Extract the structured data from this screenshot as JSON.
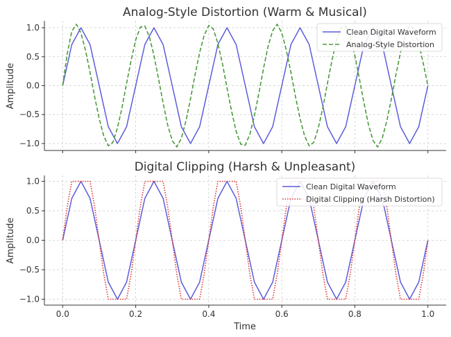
{
  "chart_data": [
    {
      "type": "line",
      "title": "Analog-Style Distortion (Warm & Musical)",
      "xlabel": "",
      "ylabel": "Amplitude",
      "xlim": [
        -0.05,
        1.05
      ],
      "ylim": [
        -1.12,
        1.12
      ],
      "xticks": [
        0.0,
        0.2,
        0.4,
        0.6,
        0.8,
        1.0
      ],
      "xtick_labels": [
        "",
        "",
        "",
        "",
        "",
        ""
      ],
      "yticks": [
        -1.0,
        -0.5,
        0.0,
        0.5,
        1.0
      ],
      "ytick_labels": [
        "−1.0",
        "−0.5",
        "0.0",
        "0.5",
        "1.0"
      ],
      "grid": true,
      "legend": "top-right",
      "series": [
        {
          "name": "Clean Digital Waveform",
          "color": "#5b5bdb",
          "style": "solid",
          "x": [
            0.0,
            0.025,
            0.05,
            0.075,
            0.1,
            0.125,
            0.15,
            0.175,
            0.2,
            0.225,
            0.25,
            0.275,
            0.3,
            0.325,
            0.35,
            0.375,
            0.4,
            0.425,
            0.45,
            0.475,
            0.5,
            0.525,
            0.55,
            0.575,
            0.6,
            0.625,
            0.65,
            0.675,
            0.7,
            0.725,
            0.75,
            0.775,
            0.8,
            0.825,
            0.85,
            0.875,
            0.9,
            0.925,
            0.95,
            0.975,
            1.0
          ],
          "y": [
            0.0,
            0.71,
            1.0,
            0.71,
            0.0,
            -0.71,
            -1.0,
            -0.71,
            0.0,
            0.71,
            1.0,
            0.71,
            0.0,
            -0.71,
            -1.0,
            -0.71,
            0.0,
            0.71,
            1.0,
            0.71,
            0.0,
            -0.71,
            -1.0,
            -0.71,
            0.0,
            0.71,
            1.0,
            0.71,
            0.0,
            -0.71,
            -1.0,
            -0.71,
            0.0,
            0.71,
            1.0,
            0.71,
            0.0,
            -0.71,
            -1.0,
            -0.71,
            0.0
          ]
        },
        {
          "name": "Analog-Style Distortion",
          "color": "#4a9a3a",
          "style": "dashed",
          "x": [
            0.0,
            0.0125,
            0.025,
            0.0375,
            0.05,
            0.0625,
            0.075,
            0.0875,
            0.1,
            0.1125,
            0.125,
            0.1375,
            0.15,
            0.1625,
            0.175,
            0.1875,
            0.2,
            0.2125,
            0.225,
            0.2375,
            0.25,
            0.2625,
            0.275,
            0.2875,
            0.3,
            0.3125,
            0.325,
            0.3375,
            0.35,
            0.3625,
            0.375,
            0.3875,
            0.4,
            0.4125,
            0.425,
            0.4375,
            0.45,
            0.4625,
            0.475,
            0.4875,
            0.5,
            0.5125,
            0.525,
            0.5375,
            0.55,
            0.5625,
            0.575,
            0.5875,
            0.6,
            0.6125,
            0.625,
            0.6375,
            0.65,
            0.6625,
            0.675,
            0.6875,
            0.7,
            0.7125,
            0.725,
            0.7375,
            0.75,
            0.7625,
            0.775,
            0.7875,
            0.8,
            0.8125,
            0.825,
            0.8375,
            0.85,
            0.8625,
            0.875,
            0.8875,
            0.9,
            0.9125,
            0.925,
            0.9375,
            0.95,
            0.9625,
            0.975,
            0.9875,
            1.0
          ],
          "y": [
            0.0,
            0.55,
            0.94,
            1.06,
            0.91,
            0.61,
            0.23,
            -0.19,
            -0.57,
            -0.87,
            -1.04,
            -0.98,
            -0.73,
            -0.38,
            0.04,
            0.44,
            0.79,
            1.01,
            1.03,
            0.84,
            0.52,
            0.12,
            -0.3,
            -0.68,
            -0.95,
            -1.06,
            -0.91,
            -0.61,
            -0.23,
            0.19,
            0.57,
            0.87,
            1.04,
            0.98,
            0.73,
            0.38,
            -0.04,
            -0.44,
            -0.79,
            -1.01,
            -1.03,
            -0.84,
            -0.52,
            -0.12,
            0.3,
            0.68,
            0.95,
            1.06,
            0.91,
            0.61,
            0.23,
            -0.19,
            -0.57,
            -0.87,
            -1.04,
            -0.98,
            -0.73,
            -0.38,
            0.04,
            0.44,
            0.79,
            1.01,
            1.03,
            0.84,
            0.52,
            0.12,
            -0.3,
            -0.68,
            -0.95,
            -1.06,
            -0.91,
            -0.61,
            -0.23,
            0.19,
            0.57,
            0.87,
            1.04,
            0.98,
            0.73,
            0.38,
            0.0
          ]
        }
      ]
    },
    {
      "type": "line",
      "title": "Digital Clipping (Harsh & Unpleasant)",
      "xlabel": "Time",
      "ylabel": "Amplitude",
      "xlim": [
        -0.05,
        1.05
      ],
      "ylim": [
        -1.1,
        1.1
      ],
      "xticks": [
        0.0,
        0.2,
        0.4,
        0.6,
        0.8,
        1.0
      ],
      "xtick_labels": [
        "0.0",
        "0.2",
        "0.4",
        "0.6",
        "0.8",
        "1.0"
      ],
      "yticks": [
        -1.0,
        -0.5,
        0.0,
        0.5,
        1.0
      ],
      "ytick_labels": [
        "−1.0",
        "−0.5",
        "0.0",
        "0.5",
        "1.0"
      ],
      "grid": true,
      "legend": "top-right",
      "series": [
        {
          "name": "Clean Digital Waveform",
          "color": "#5b5bdb",
          "style": "solid",
          "x": [
            0.0,
            0.025,
            0.05,
            0.075,
            0.1,
            0.125,
            0.15,
            0.175,
            0.2,
            0.225,
            0.25,
            0.275,
            0.3,
            0.325,
            0.35,
            0.375,
            0.4,
            0.425,
            0.45,
            0.475,
            0.5,
            0.525,
            0.55,
            0.575,
            0.6,
            0.625,
            0.65,
            0.675,
            0.7,
            0.725,
            0.75,
            0.775,
            0.8,
            0.825,
            0.85,
            0.875,
            0.9,
            0.925,
            0.95,
            0.975,
            1.0
          ],
          "y": [
            0.0,
            0.71,
            1.0,
            0.71,
            0.0,
            -0.71,
            -1.0,
            -0.71,
            0.0,
            0.71,
            1.0,
            0.71,
            0.0,
            -0.71,
            -1.0,
            -0.71,
            0.0,
            0.71,
            1.0,
            0.71,
            0.0,
            -0.71,
            -1.0,
            -0.71,
            0.0,
            0.71,
            1.0,
            0.71,
            0.0,
            -0.71,
            -1.0,
            -0.71,
            0.0,
            0.71,
            1.0,
            0.71,
            0.0,
            -0.71,
            -1.0,
            -0.71,
            0.0
          ]
        },
        {
          "name": "Digital Clipping (Harsh Distortion)",
          "color": "#e03030",
          "style": "dotted",
          "x": [
            0.0,
            0.0125,
            0.025,
            0.0375,
            0.05,
            0.0625,
            0.075,
            0.0875,
            0.1,
            0.1125,
            0.125,
            0.1375,
            0.15,
            0.1625,
            0.175,
            0.1875,
            0.2,
            0.2125,
            0.225,
            0.2375,
            0.25,
            0.2625,
            0.275,
            0.2875,
            0.3,
            0.3125,
            0.325,
            0.3375,
            0.35,
            0.3625,
            0.375,
            0.3875,
            0.4,
            0.4125,
            0.425,
            0.4375,
            0.45,
            0.4625,
            0.475,
            0.4875,
            0.5,
            0.5125,
            0.525,
            0.5375,
            0.55,
            0.5625,
            0.575,
            0.5875,
            0.6,
            0.6125,
            0.625,
            0.6375,
            0.65,
            0.6625,
            0.675,
            0.6875,
            0.7,
            0.7125,
            0.725,
            0.7375,
            0.75,
            0.7625,
            0.775,
            0.7875,
            0.8,
            0.8125,
            0.825,
            0.8375,
            0.85,
            0.8625,
            0.875,
            0.8875,
            0.9,
            0.9125,
            0.925,
            0.9375,
            0.95,
            0.9625,
            0.975,
            0.9875,
            1.0
          ],
          "y": [
            0.0,
            0.57,
            1.0,
            1.0,
            1.0,
            1.0,
            1.0,
            0.57,
            0.0,
            -0.57,
            -1.0,
            -1.0,
            -1.0,
            -1.0,
            -1.0,
            -0.57,
            0.0,
            0.57,
            1.0,
            1.0,
            1.0,
            1.0,
            1.0,
            0.57,
            0.0,
            -0.57,
            -1.0,
            -1.0,
            -1.0,
            -1.0,
            -1.0,
            -0.57,
            0.0,
            0.57,
            1.0,
            1.0,
            1.0,
            1.0,
            1.0,
            0.57,
            0.0,
            -0.57,
            -1.0,
            -1.0,
            -1.0,
            -1.0,
            -1.0,
            -0.57,
            0.0,
            0.57,
            1.0,
            1.0,
            1.0,
            1.0,
            1.0,
            0.57,
            0.0,
            -0.57,
            -1.0,
            -1.0,
            -1.0,
            -1.0,
            -1.0,
            -0.57,
            0.0,
            0.57,
            1.0,
            1.0,
            1.0,
            1.0,
            1.0,
            0.57,
            0.0,
            -0.57,
            -1.0,
            -1.0,
            -1.0,
            -1.0,
            -1.0,
            -0.57,
            0.0
          ]
        }
      ]
    }
  ]
}
